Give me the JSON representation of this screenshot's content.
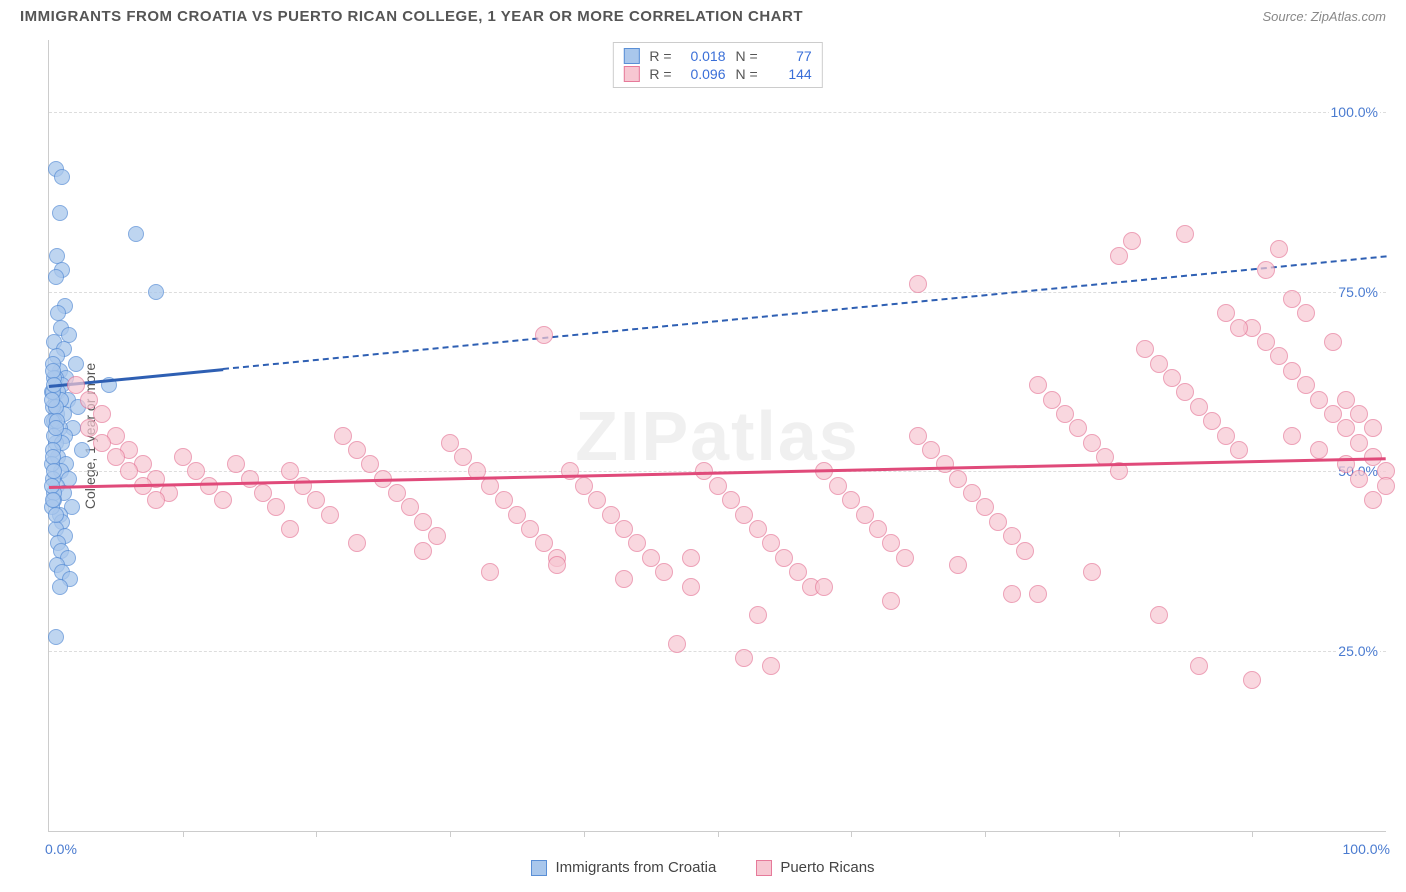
{
  "title": "IMMIGRANTS FROM CROATIA VS PUERTO RICAN COLLEGE, 1 YEAR OR MORE CORRELATION CHART",
  "source": "Source: ZipAtlas.com",
  "watermark": "ZIPatlas",
  "y_axis_title": "College, 1 year or more",
  "x_axis": {
    "min": 0,
    "max": 100,
    "label_min": "0.0%",
    "label_max": "100.0%",
    "tick_step": 10
  },
  "y_axis": {
    "min": 0,
    "max": 110,
    "grid": [
      {
        "v": 25,
        "label": "25.0%"
      },
      {
        "v": 50,
        "label": "50.0%"
      },
      {
        "v": 75,
        "label": "75.0%"
      },
      {
        "v": 100,
        "label": "100.0%"
      }
    ]
  },
  "series": [
    {
      "id": "croatia",
      "name": "Immigrants from Croatia",
      "marker": {
        "fill": "#a9c7ec",
        "stroke": "#5a8fd6",
        "stroke_width": 1.5,
        "radius": 8,
        "opacity": 0.75
      },
      "trend": {
        "color": "#2e5fb3",
        "y_start": 62,
        "y_end": 80,
        "solid_until_x": 13
      },
      "stats": {
        "R": "0.018",
        "N": "77"
      },
      "points": [
        [
          0.5,
          92
        ],
        [
          1.0,
          91
        ],
        [
          0.8,
          86
        ],
        [
          6.5,
          83
        ],
        [
          0.6,
          80
        ],
        [
          1.0,
          78
        ],
        [
          0.5,
          77
        ],
        [
          8.0,
          75
        ],
        [
          1.2,
          73
        ],
        [
          0.7,
          72
        ],
        [
          0.9,
          70
        ],
        [
          1.5,
          69
        ],
        [
          0.4,
          68
        ],
        [
          1.1,
          67
        ],
        [
          0.6,
          66
        ],
        [
          2.0,
          65
        ],
        [
          0.8,
          64
        ],
        [
          1.3,
          63
        ],
        [
          0.5,
          63
        ],
        [
          1.0,
          62
        ],
        [
          4.5,
          62
        ],
        [
          0.7,
          61
        ],
        [
          1.4,
          60
        ],
        [
          0.9,
          60
        ],
        [
          2.2,
          59
        ],
        [
          0.6,
          58
        ],
        [
          1.1,
          58
        ],
        [
          0.4,
          57
        ],
        [
          1.8,
          56
        ],
        [
          0.8,
          56
        ],
        [
          1.2,
          55
        ],
        [
          0.5,
          54
        ],
        [
          1.0,
          54
        ],
        [
          2.5,
          53
        ],
        [
          0.7,
          52
        ],
        [
          1.3,
          51
        ],
        [
          0.9,
          50
        ],
        [
          1.5,
          49
        ],
        [
          0.6,
          48
        ],
        [
          1.1,
          47
        ],
        [
          0.4,
          46
        ],
        [
          1.7,
          45
        ],
        [
          0.8,
          44
        ],
        [
          1.0,
          43
        ],
        [
          0.5,
          42
        ],
        [
          1.2,
          41
        ],
        [
          0.7,
          40
        ],
        [
          0.9,
          39
        ],
        [
          1.4,
          38
        ],
        [
          0.6,
          37
        ],
        [
          1.0,
          36
        ],
        [
          1.6,
          35
        ],
        [
          0.8,
          34
        ],
        [
          0.5,
          27
        ],
        [
          0.3,
          65
        ],
        [
          0.4,
          63
        ],
        [
          0.2,
          61
        ],
        [
          0.3,
          59
        ],
        [
          0.2,
          57
        ],
        [
          0.4,
          55
        ],
        [
          0.3,
          53
        ],
        [
          0.2,
          51
        ],
        [
          0.3,
          49
        ],
        [
          0.4,
          47
        ],
        [
          0.2,
          45
        ],
        [
          0.3,
          61
        ],
        [
          0.5,
          59
        ],
        [
          0.6,
          57
        ],
        [
          0.3,
          64
        ],
        [
          0.4,
          62
        ],
        [
          0.2,
          60
        ],
        [
          0.5,
          56
        ],
        [
          0.3,
          52
        ],
        [
          0.4,
          50
        ],
        [
          0.2,
          48
        ],
        [
          0.3,
          46
        ],
        [
          0.5,
          44
        ]
      ]
    },
    {
      "id": "puertorican",
      "name": "Puerto Ricans",
      "marker": {
        "fill": "#f7c7d2",
        "stroke": "#e67a9a",
        "stroke_width": 1.5,
        "radius": 9,
        "opacity": 0.7
      },
      "trend": {
        "color": "#e04a7a",
        "y_start": 48,
        "y_end": 52,
        "solid_until_x": 100
      },
      "stats": {
        "R": "0.096",
        "N": "144"
      },
      "points": [
        [
          2,
          62
        ],
        [
          3,
          60
        ],
        [
          4,
          58
        ],
        [
          3,
          56
        ],
        [
          5,
          55
        ],
        [
          4,
          54
        ],
        [
          6,
          53
        ],
        [
          5,
          52
        ],
        [
          7,
          51
        ],
        [
          6,
          50
        ],
        [
          8,
          49
        ],
        [
          7,
          48
        ],
        [
          9,
          47
        ],
        [
          8,
          46
        ],
        [
          10,
          52
        ],
        [
          11,
          50
        ],
        [
          12,
          48
        ],
        [
          13,
          46
        ],
        [
          14,
          51
        ],
        [
          15,
          49
        ],
        [
          16,
          47
        ],
        [
          17,
          45
        ],
        [
          18,
          50
        ],
        [
          19,
          48
        ],
        [
          20,
          46
        ],
        [
          21,
          44
        ],
        [
          22,
          55
        ],
        [
          23,
          53
        ],
        [
          24,
          51
        ],
        [
          25,
          49
        ],
        [
          26,
          47
        ],
        [
          27,
          45
        ],
        [
          28,
          43
        ],
        [
          29,
          41
        ],
        [
          30,
          54
        ],
        [
          31,
          52
        ],
        [
          32,
          50
        ],
        [
          33,
          48
        ],
        [
          34,
          46
        ],
        [
          35,
          44
        ],
        [
          36,
          42
        ],
        [
          37,
          40
        ],
        [
          38,
          38
        ],
        [
          39,
          50
        ],
        [
          40,
          48
        ],
        [
          41,
          46
        ],
        [
          37,
          69
        ],
        [
          42,
          44
        ],
        [
          43,
          42
        ],
        [
          44,
          40
        ],
        [
          45,
          38
        ],
        [
          46,
          36
        ],
        [
          47,
          26
        ],
        [
          48,
          34
        ],
        [
          49,
          50
        ],
        [
          50,
          48
        ],
        [
          51,
          46
        ],
        [
          52,
          44
        ],
        [
          53,
          42
        ],
        [
          52,
          24
        ],
        [
          54,
          40
        ],
        [
          55,
          38
        ],
        [
          56,
          36
        ],
        [
          57,
          34
        ],
        [
          58,
          50
        ],
        [
          59,
          48
        ],
        [
          54,
          23
        ],
        [
          60,
          46
        ],
        [
          61,
          44
        ],
        [
          62,
          42
        ],
        [
          63,
          40
        ],
        [
          64,
          38
        ],
        [
          65,
          55
        ],
        [
          66,
          53
        ],
        [
          67,
          51
        ],
        [
          65,
          76
        ],
        [
          68,
          49
        ],
        [
          69,
          47
        ],
        [
          70,
          45
        ],
        [
          71,
          43
        ],
        [
          72,
          41
        ],
        [
          73,
          39
        ],
        [
          74,
          62
        ],
        [
          75,
          60
        ],
        [
          76,
          58
        ],
        [
          77,
          56
        ],
        [
          78,
          54
        ],
        [
          79,
          52
        ],
        [
          74,
          33
        ],
        [
          80,
          50
        ],
        [
          81,
          82
        ],
        [
          82,
          67
        ],
        [
          83,
          65
        ],
        [
          84,
          63
        ],
        [
          85,
          61
        ],
        [
          80,
          80
        ],
        [
          86,
          59
        ],
        [
          87,
          57
        ],
        [
          88,
          55
        ],
        [
          89,
          53
        ],
        [
          90,
          70
        ],
        [
          91,
          68
        ],
        [
          92,
          66
        ],
        [
          93,
          64
        ],
        [
          94,
          62
        ],
        [
          95,
          60
        ],
        [
          92,
          81
        ],
        [
          96,
          58
        ],
        [
          97,
          56
        ],
        [
          98,
          54
        ],
        [
          99,
          52
        ],
        [
          88,
          72
        ],
        [
          89,
          70
        ],
        [
          90,
          21
        ],
        [
          91,
          78
        ],
        [
          85,
          83
        ],
        [
          93,
          74
        ],
        [
          94,
          72
        ],
        [
          96,
          68
        ],
        [
          97,
          60
        ],
        [
          98,
          58
        ],
        [
          99,
          56
        ],
        [
          100,
          50
        ],
        [
          100,
          48
        ],
        [
          99,
          46
        ],
        [
          98,
          49
        ],
        [
          97,
          51
        ],
        [
          95,
          53
        ],
        [
          86,
          23
        ],
        [
          93,
          55
        ],
        [
          83,
          30
        ],
        [
          78,
          36
        ],
        [
          72,
          33
        ],
        [
          68,
          37
        ],
        [
          63,
          32
        ],
        [
          58,
          34
        ],
        [
          53,
          30
        ],
        [
          48,
          38
        ],
        [
          43,
          35
        ],
        [
          38,
          37
        ],
        [
          33,
          36
        ],
        [
          28,
          39
        ],
        [
          23,
          40
        ],
        [
          18,
          42
        ]
      ]
    }
  ],
  "legend_top_labels": {
    "R": "R =",
    "N": "N ="
  },
  "colors": {
    "title": "#555555",
    "source": "#888888",
    "axis_line": "#cccccc",
    "grid_line": "#dddddd",
    "axis_label": "#4a7bd0",
    "background": "#ffffff"
  }
}
